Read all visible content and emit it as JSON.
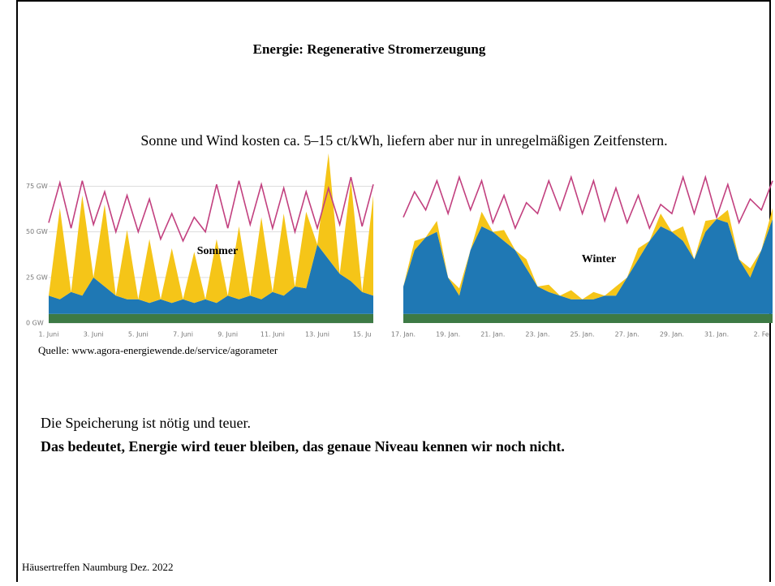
{
  "title": "Energie: Regenerative Stromerzeugung",
  "subtitle": "Sonne und Wind kosten ca. 5–15 ct/kWh, liefern aber nur in unregelmäßigen Zeitfenstern.",
  "source": "Quelle: www.agora-energiewende.de/service/agorameter",
  "body": [
    "Die Speicherung ist nötig und teuer.",
    "Das bedeutet, Energie wird teuer bleiben, das genaue Niveau kennen wir noch nicht."
  ],
  "footer": "Häusertreffen Naumburg Dez. 2022",
  "chart_data": [
    {
      "type": "area",
      "annotation": "Sommer",
      "categories": [
        "1. Juni",
        null,
        null,
        null,
        "3. Juni",
        null,
        null,
        null,
        "5. Juni",
        null,
        null,
        null,
        "7. Juni",
        null,
        null,
        null,
        "9. Juni",
        null,
        null,
        null,
        "11. Juni",
        null,
        null,
        null,
        "13. Juni",
        null,
        null,
        null,
        "15. Ju",
        null
      ],
      "ylim": [
        0,
        85
      ],
      "yticks": [
        {
          "value": 0,
          "label": "0 GW"
        },
        {
          "value": 25,
          "label": "25 GW"
        },
        {
          "value": 50,
          "label": "50 GW"
        },
        {
          "value": 75,
          "label": "75 GW"
        }
      ],
      "grid": true,
      "series": [
        {
          "type": "area",
          "color": "#3d7a45",
          "values": [
            5,
            5,
            5,
            5,
            5,
            5,
            5,
            5,
            5,
            5,
            5,
            5,
            5,
            5,
            5,
            5,
            5,
            5,
            5,
            5,
            5,
            5,
            5,
            5,
            5,
            5,
            5,
            5,
            5,
            5
          ]
        },
        {
          "type": "area",
          "color": "#1f78b4",
          "values": [
            10,
            8,
            12,
            10,
            20,
            15,
            10,
            8,
            8,
            6,
            8,
            6,
            8,
            6,
            8,
            6,
            10,
            8,
            10,
            8,
            12,
            10,
            15,
            14,
            38,
            30,
            22,
            18,
            12,
            10
          ]
        },
        {
          "type": "area",
          "color": "#f5c518",
          "values": [
            0,
            50,
            0,
            55,
            0,
            45,
            0,
            38,
            0,
            35,
            0,
            30,
            0,
            28,
            0,
            35,
            0,
            40,
            0,
            45,
            0,
            45,
            0,
            42,
            0,
            58,
            0,
            55,
            0,
            55
          ]
        },
        {
          "type": "line",
          "color": "#c2407f",
          "values": [
            55,
            77,
            52,
            78,
            54,
            72,
            50,
            70,
            50,
            68,
            46,
            60,
            45,
            58,
            50,
            76,
            52,
            78,
            54,
            76,
            52,
            74,
            50,
            72,
            52,
            74,
            54,
            80,
            53,
            76
          ]
        }
      ]
    },
    {
      "type": "area",
      "annotation": "Winter",
      "categories": [
        "17. Jan.",
        null,
        null,
        null,
        "19. Jan.",
        null,
        null,
        null,
        "21. Jan.",
        null,
        null,
        null,
        "23. Jan.",
        null,
        null,
        null,
        "25. Jan.",
        null,
        null,
        null,
        "27. Jan.",
        null,
        null,
        null,
        "29. Jan.",
        null,
        null,
        null,
        "31. Jan.",
        null,
        null,
        null,
        "2. Fe",
        null
      ],
      "ylim": [
        0,
        85
      ],
      "grid": false,
      "series": [
        {
          "type": "area",
          "color": "#3d7a45",
          "values": [
            5,
            5,
            5,
            5,
            5,
            5,
            5,
            5,
            5,
            5,
            5,
            5,
            5,
            5,
            5,
            5,
            5,
            5,
            5,
            5,
            5,
            5,
            5,
            5,
            5,
            5,
            5,
            5,
            5,
            5,
            5,
            5,
            5,
            5
          ]
        },
        {
          "type": "area",
          "color": "#1f78b4",
          "values": [
            15,
            35,
            42,
            45,
            20,
            10,
            35,
            48,
            45,
            40,
            35,
            25,
            15,
            12,
            10,
            8,
            8,
            8,
            10,
            10,
            20,
            30,
            40,
            48,
            45,
            40,
            30,
            45,
            52,
            50,
            30,
            20,
            35,
            52
          ]
        },
        {
          "type": "area",
          "color": "#f5c518",
          "values": [
            0,
            5,
            0,
            6,
            0,
            4,
            0,
            8,
            0,
            6,
            0,
            5,
            0,
            4,
            0,
            5,
            0,
            4,
            0,
            5,
            0,
            6,
            0,
            7,
            0,
            8,
            0,
            6,
            0,
            7,
            0,
            5,
            0,
            6
          ]
        },
        {
          "type": "line",
          "color": "#c2407f",
          "values": [
            58,
            72,
            62,
            78,
            60,
            80,
            62,
            78,
            55,
            70,
            52,
            66,
            60,
            78,
            62,
            80,
            60,
            78,
            56,
            74,
            55,
            70,
            52,
            65,
            60,
            80,
            60,
            80,
            58,
            76,
            55,
            68,
            62,
            78
          ]
        }
      ]
    }
  ]
}
